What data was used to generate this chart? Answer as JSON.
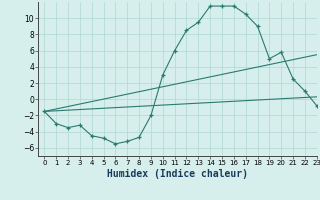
{
  "main_x": [
    0,
    1,
    2,
    3,
    4,
    5,
    6,
    7,
    8,
    9,
    10,
    11,
    12,
    13,
    14,
    15,
    16,
    17,
    18,
    19,
    20,
    21,
    22,
    23
  ],
  "main_y": [
    -1.5,
    -3.0,
    -3.5,
    -3.2,
    -4.5,
    -4.8,
    -5.5,
    -5.2,
    -4.7,
    -2.0,
    3.0,
    6.0,
    8.5,
    9.5,
    11.5,
    11.5,
    11.5,
    10.5,
    9.0,
    5.0,
    5.8,
    2.5,
    1.0,
    -0.8
  ],
  "line1_x": [
    0,
    23
  ],
  "line1_y": [
    -1.5,
    5.5
  ],
  "line2_x": [
    0,
    23
  ],
  "line2_y": [
    -1.5,
    0.3
  ],
  "color": "#2a7a6f",
  "bg_color": "#d6efed",
  "grid_color": "#b0d8d4",
  "xlim": [
    -0.5,
    23
  ],
  "ylim": [
    -7,
    12
  ],
  "yticks": [
    -6,
    -4,
    -2,
    0,
    2,
    4,
    6,
    8,
    10
  ],
  "xticks": [
    0,
    1,
    2,
    3,
    4,
    5,
    6,
    7,
    8,
    9,
    10,
    11,
    12,
    13,
    14,
    15,
    16,
    17,
    18,
    19,
    20,
    21,
    22,
    23
  ],
  "xlabel": "Humidex (Indice chaleur)",
  "xlabel_fontsize": 7
}
